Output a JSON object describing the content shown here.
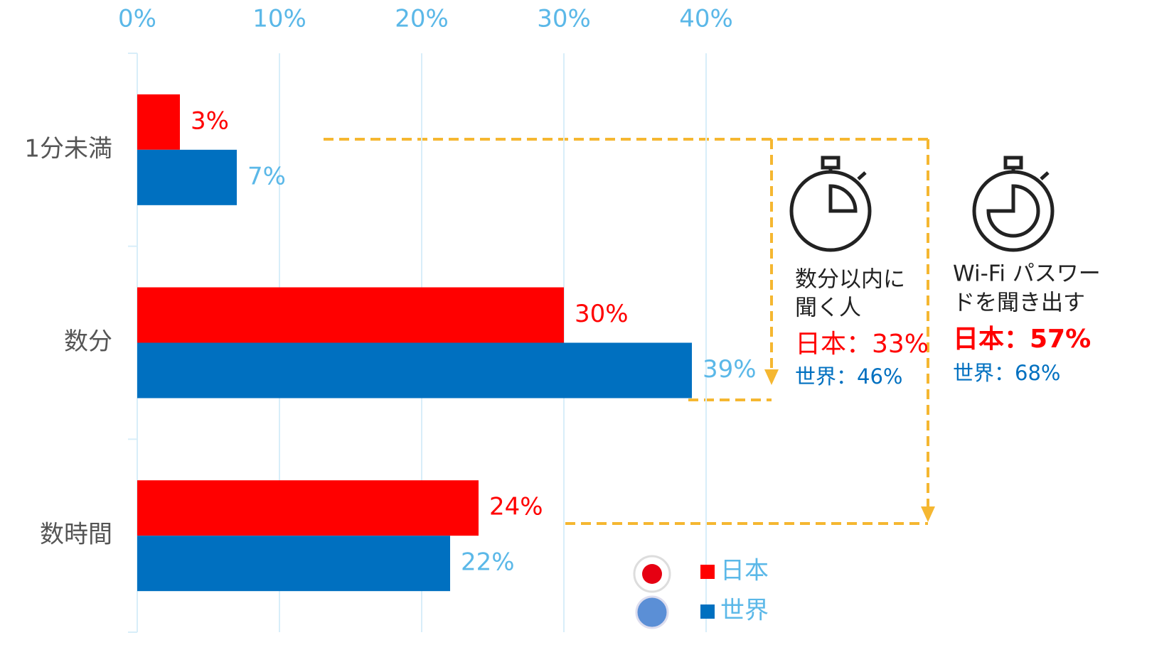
{
  "chart_data": {
    "type": "hbar",
    "categories": [
      "1分未満",
      "数分",
      "数時間"
    ],
    "series": [
      {
        "name": "日本",
        "color": "#ff0000",
        "values": [
          3,
          30,
          24
        ],
        "value_labels": [
          "3%",
          "30%",
          "24%"
        ]
      },
      {
        "name": "世界",
        "color": "#0070c0",
        "values": [
          7,
          39,
          22
        ],
        "value_labels": [
          "7%",
          "39%",
          "22%"
        ]
      }
    ],
    "xlim": [
      0,
      40
    ],
    "xticks": [
      {
        "value": 0,
        "label": "0%"
      },
      {
        "value": 10,
        "label": "10%"
      },
      {
        "value": 20,
        "label": "20%"
      },
      {
        "value": 30,
        "label": "30%"
      },
      {
        "value": 40,
        "label": "40%"
      }
    ],
    "grid": true,
    "annotations": [
      {
        "lines": [
          "数分以内に",
          "聞く人"
        ],
        "japan": "日本：33%",
        "world": "世界：46%"
      },
      {
        "lines": [
          "Wi-Fi パスワー",
          "ドを聞き出す"
        ],
        "japan": "日本：57%",
        "world": "世界：68%"
      }
    ]
  }
}
